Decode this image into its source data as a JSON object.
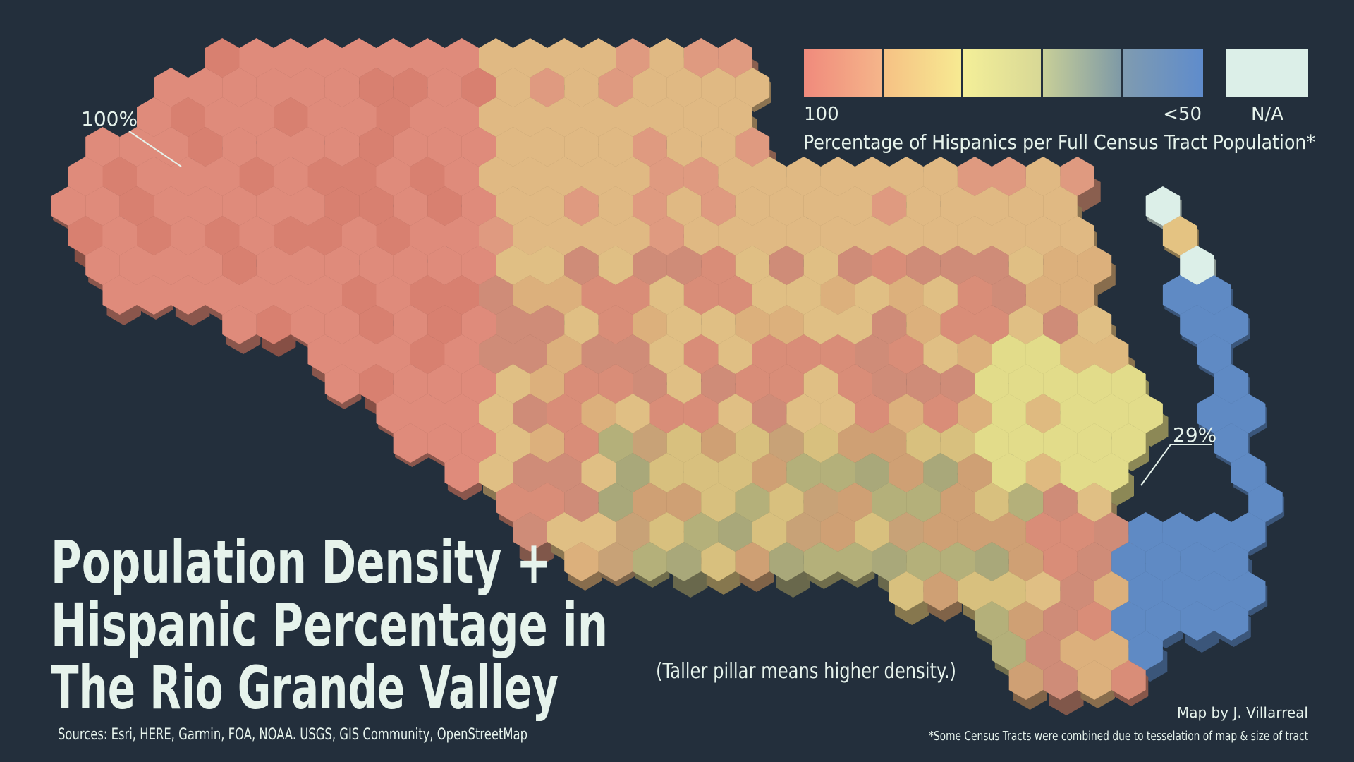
{
  "title": [
    "Population Density +",
    "Hispanic Percentage in",
    "The Rio Grande Valley"
  ],
  "note": "(Taller pillar means higher density.)",
  "legend": {
    "high_label": "100",
    "low_label": "<50",
    "na_label": "N/A",
    "title": "Percentage of Hispanics per Full Census Tract Population*"
  },
  "annotations": [
    "100%",
    "29%"
  ],
  "sources": "Sources: Esri, HERE, Garmin, FOA, NOAA. USGS, GIS Community, OpenStreetMap",
  "credit": "Map by J. Villarreal",
  "footnote": "*Some Census Tracts were combined due to tesselation of map & size of tract"
}
